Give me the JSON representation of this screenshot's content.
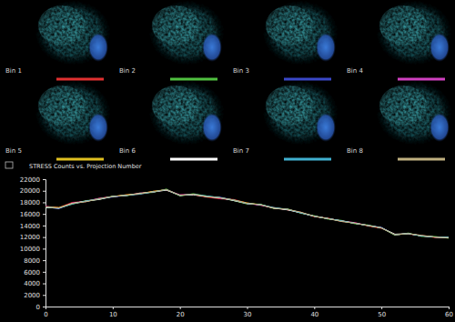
{
  "chart_data": {
    "type": "line",
    "title": "STRESS Counts vs. Projection Number",
    "x": [
      0,
      2,
      4,
      6,
      8,
      10,
      12,
      14,
      16,
      18,
      20,
      22,
      24,
      26,
      28,
      30,
      32,
      34,
      36,
      38,
      40,
      42,
      44,
      46,
      48,
      50,
      52,
      54,
      56,
      58,
      60
    ],
    "xlim": [
      0,
      60
    ],
    "xticks": [
      0,
      10,
      20,
      30,
      40,
      50,
      60
    ],
    "ylim": [
      0,
      22000
    ],
    "yticks": [
      0,
      2000,
      4000,
      6000,
      8000,
      10000,
      12000,
      14000,
      16000,
      18000,
      20000,
      22000
    ],
    "series": [
      {
        "name": "Bin 1",
        "color": "#e03030",
        "values": [
          17300,
          17100,
          18000,
          18100,
          18700,
          19000,
          19300,
          19400,
          19900,
          20100,
          19300,
          19300,
          18900,
          18600,
          18500,
          17900,
          17500,
          17100,
          16700,
          16300,
          15500,
          15300,
          14700,
          14500,
          13900,
          13500,
          12500,
          12500,
          12300,
          11900,
          12000
        ]
      },
      {
        "name": "Bin 2",
        "color": "#50c040",
        "values": [
          17100,
          17000,
          17700,
          18300,
          18500,
          19100,
          19100,
          19600,
          19700,
          20300,
          19100,
          19500,
          19100,
          18800,
          18300,
          17700,
          17700,
          16900,
          16900,
          16100,
          15700,
          15100,
          14900,
          14300,
          14100,
          13600,
          12300,
          12700,
          12100,
          12100,
          11800
        ]
      },
      {
        "name": "Bin 3",
        "color": "#3a48c8",
        "values": [
          17200,
          16900,
          17800,
          18200,
          18600,
          18900,
          19200,
          19500,
          19800,
          20200,
          19200,
          19400,
          19000,
          18900,
          18400,
          17800,
          17600,
          17000,
          16800,
          16200,
          15600,
          15200,
          14800,
          14400,
          14000,
          13700,
          12400,
          12600,
          12200,
          12000,
          11900
        ]
      },
      {
        "name": "Bin 4",
        "color": "#d040c0",
        "values": [
          17300,
          17000,
          17900,
          18200,
          18700,
          19000,
          19200,
          19600,
          19800,
          20200,
          19300,
          19400,
          19000,
          18700,
          18400,
          17800,
          17500,
          17000,
          16800,
          16200,
          15600,
          15200,
          14800,
          14500,
          14000,
          13600,
          12400,
          12600,
          12200,
          12000,
          11900
        ]
      },
      {
        "name": "Bin 5",
        "color": "#e0c020",
        "values": [
          17200,
          17100,
          17800,
          18200,
          18600,
          19000,
          19300,
          19500,
          19900,
          20200,
          19200,
          19400,
          19000,
          18800,
          18400,
          17900,
          17600,
          17000,
          16800,
          16200,
          15600,
          15200,
          14800,
          14400,
          14000,
          13600,
          12400,
          12600,
          12200,
          12000,
          11900
        ]
      },
      {
        "name": "Bin 6",
        "color": "#ffffff",
        "values": [
          17100,
          17000,
          17800,
          18200,
          18500,
          19000,
          19200,
          19500,
          19800,
          20100,
          19200,
          19300,
          19000,
          18800,
          18300,
          17800,
          17600,
          17000,
          16700,
          16200,
          15600,
          15200,
          14800,
          14400,
          14000,
          13600,
          12500,
          12600,
          12200,
          12000,
          11900
        ]
      },
      {
        "name": "Bin 7",
        "color": "#40b0d0",
        "values": [
          17200,
          17000,
          17700,
          18200,
          18600,
          19000,
          19200,
          19400,
          19800,
          20200,
          19200,
          19400,
          19100,
          18800,
          18400,
          17800,
          17600,
          17100,
          16800,
          16200,
          15600,
          15200,
          14800,
          14400,
          14000,
          13600,
          12400,
          12600,
          12200,
          12000,
          12000
        ]
      },
      {
        "name": "Bin 8",
        "color": "#c0b080",
        "values": [
          17200,
          17000,
          17800,
          18100,
          18600,
          19000,
          19200,
          19500,
          19800,
          20200,
          19200,
          19400,
          19000,
          18800,
          18400,
          17800,
          17600,
          17000,
          16800,
          16300,
          15600,
          15200,
          14700,
          14400,
          14000,
          13600,
          12400,
          12600,
          12300,
          12000,
          11900
        ]
      }
    ]
  }
}
